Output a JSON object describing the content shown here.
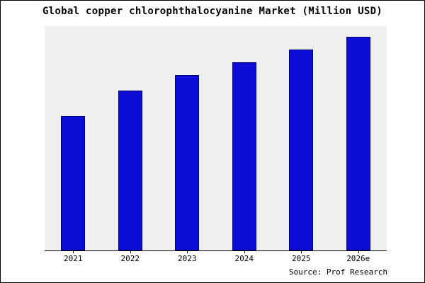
{
  "title": "Global copper chlorophthalocyanine Market (Million USD)",
  "source": "Source: Prof Research",
  "chart_data": {
    "type": "bar",
    "title": "Global copper chlorophthalocyanine Market (Million USD)",
    "categories": [
      "2021",
      "2022",
      "2023",
      "2024",
      "2025",
      "2026e"
    ],
    "values": [
      63,
      75,
      82,
      88,
      94,
      100
    ],
    "xlabel": "",
    "ylabel": "",
    "ylim": [
      0,
      105
    ],
    "grid": false,
    "legend": false,
    "bar_color": "#0d0dd8",
    "bar_edge_color": "#000078",
    "plot_background": "#efefef",
    "source_annotation": "Source: Prof Research"
  }
}
